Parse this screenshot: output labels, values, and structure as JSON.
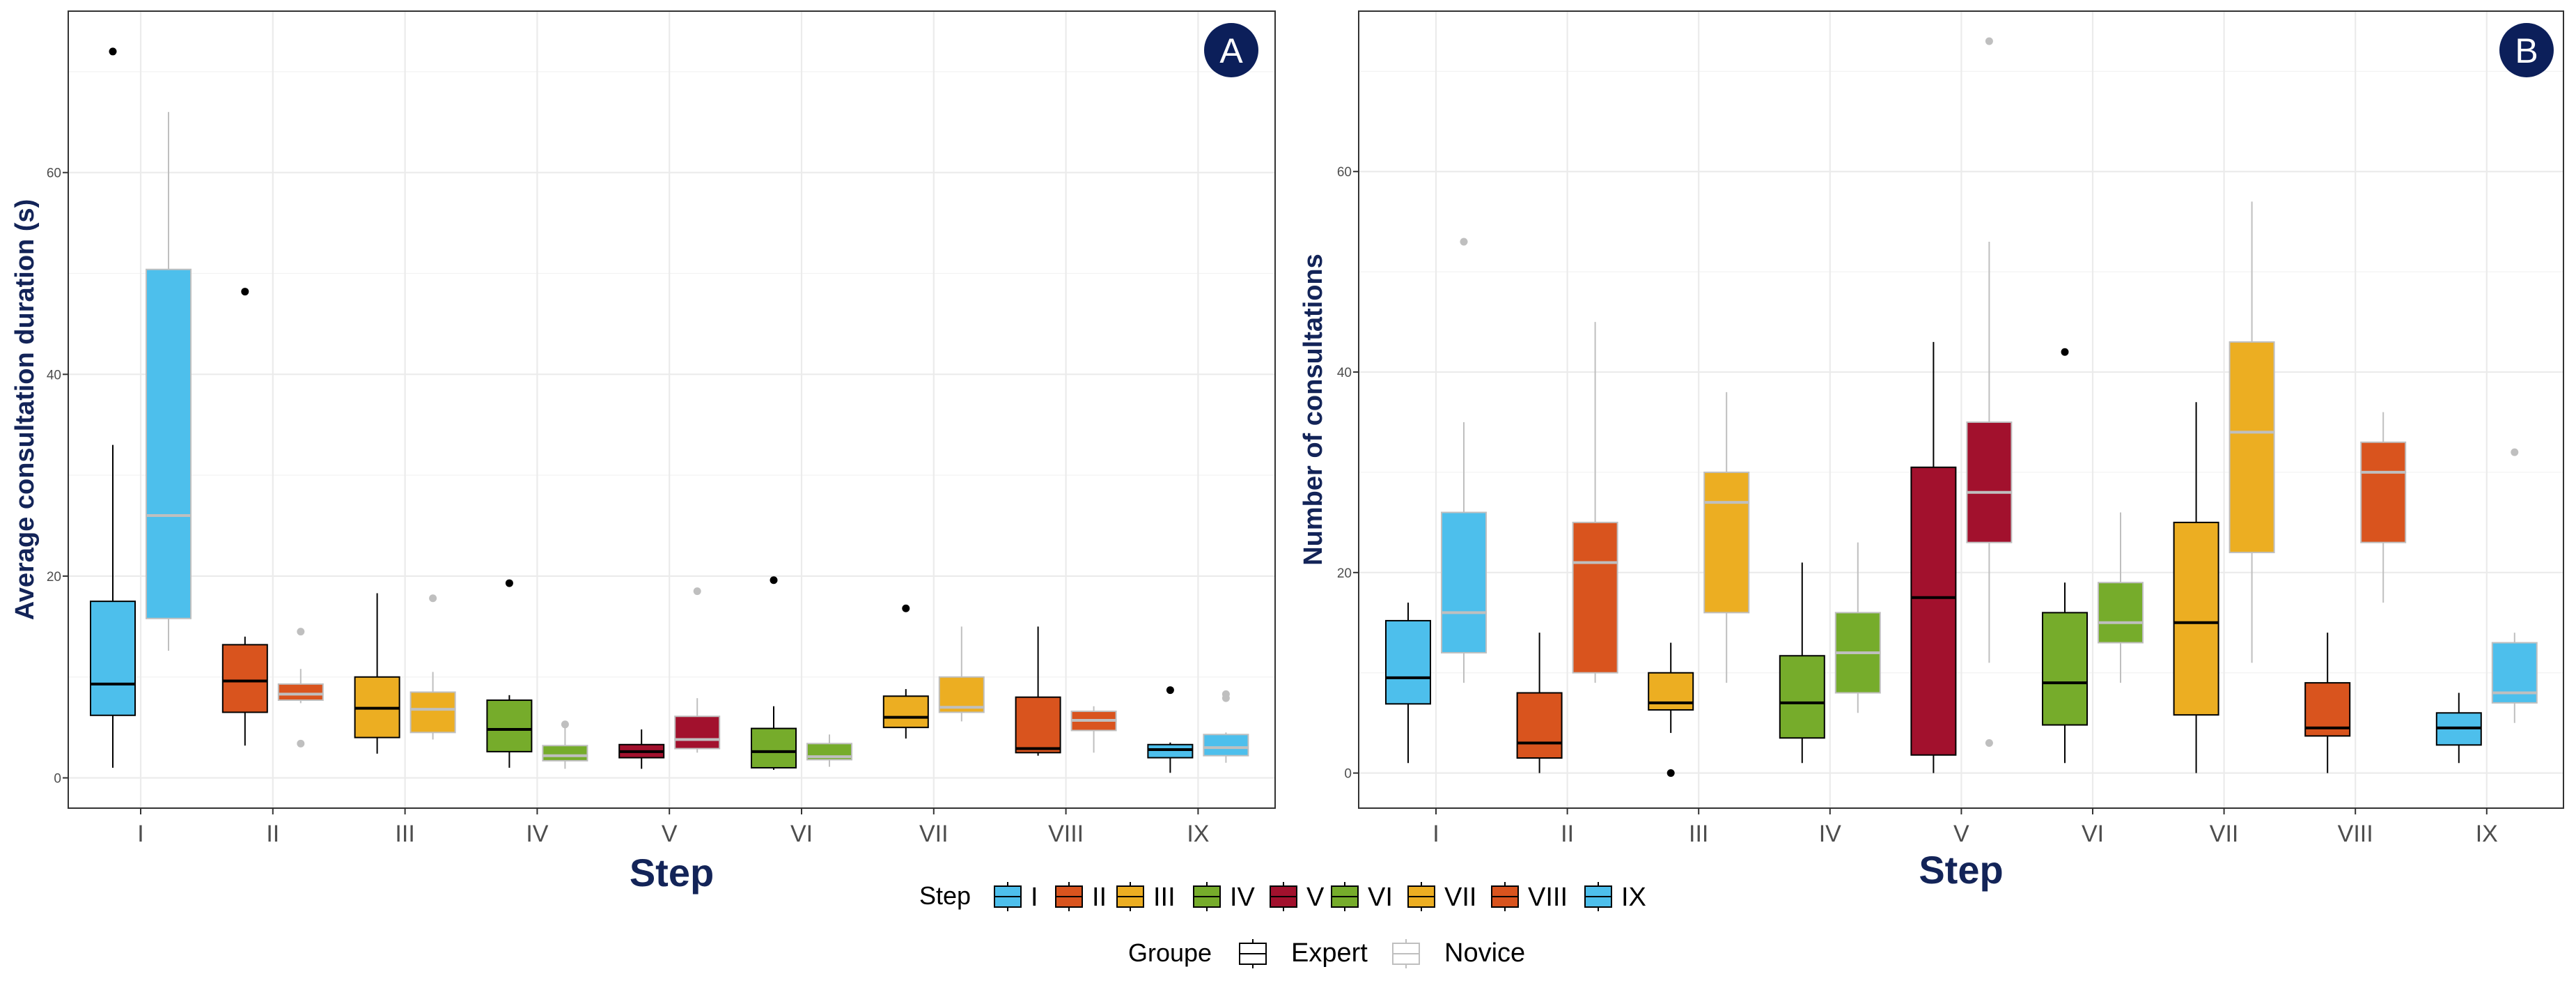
{
  "colors": {
    "I": "#4dbfec",
    "II": "#d9541e",
    "III": "#ecae22",
    "IV": "#76ac2b",
    "V": "#a2112d",
    "VI": "#76ac2b",
    "VII": "#ecae22",
    "VIII": "#d9541e",
    "IX": "#4dbfec",
    "badge": "#0c1f5a",
    "expert_line": "#000000",
    "novice_line": "#bfbfbf"
  },
  "chart_data": [
    {
      "type": "box",
      "panel": "A",
      "xlabel": "Step",
      "ylabel": "Average consultation duration (s)",
      "ylim": [
        -3,
        76
      ],
      "yticks": [
        0,
        20,
        40,
        60
      ],
      "categories": [
        "I",
        "II",
        "III",
        "IV",
        "V",
        "VI",
        "VII",
        "VIII",
        "IX"
      ],
      "series": [
        {
          "name": "Expert",
          "boxes": [
            {
              "min": 1,
              "q1": 6.2,
              "median": 9.3,
              "q3": 17.5,
              "max": 33,
              "outliers": [
                72
              ]
            },
            {
              "min": 3.2,
              "q1": 6.5,
              "median": 9.6,
              "q3": 13.2,
              "max": 14,
              "outliers": [
                48.2
              ]
            },
            {
              "min": 2.4,
              "q1": 4,
              "median": 6.9,
              "q3": 10,
              "max": 18.3,
              "outliers": []
            },
            {
              "min": 1,
              "q1": 2.6,
              "median": 4.8,
              "q3": 7.7,
              "max": 8.2,
              "outliers": [
                19.3
              ]
            },
            {
              "min": 0.9,
              "q1": 2,
              "median": 2.6,
              "q3": 3.3,
              "max": 4.8,
              "outliers": []
            },
            {
              "min": 0.8,
              "q1": 1,
              "median": 2.6,
              "q3": 4.9,
              "max": 7.1,
              "outliers": [
                19.6
              ]
            },
            {
              "min": 3.9,
              "q1": 5,
              "median": 6,
              "q3": 8.1,
              "max": 8.8,
              "outliers": [
                16.8
              ]
            },
            {
              "min": 2.2,
              "q1": 2.5,
              "median": 2.9,
              "q3": 8,
              "max": 15,
              "outliers": []
            },
            {
              "min": 0.5,
              "q1": 2,
              "median": 2.8,
              "q3": 3.3,
              "max": 3.5,
              "outliers": [
                8.7
              ]
            }
          ]
        },
        {
          "name": "Novice",
          "boxes": [
            {
              "min": 12.6,
              "q1": 15.8,
              "median": 26,
              "q3": 50.4,
              "max": 66,
              "outliers": []
            },
            {
              "min": 7.4,
              "q1": 7.7,
              "median": 8.3,
              "q3": 9.3,
              "max": 10.8,
              "outliers": [
                14.5,
                3.4
              ]
            },
            {
              "min": 3.8,
              "q1": 4.5,
              "median": 6.8,
              "q3": 8.5,
              "max": 10.5,
              "outliers": [
                17.8
              ]
            },
            {
              "min": 0.9,
              "q1": 1.7,
              "median": 2.2,
              "q3": 3.2,
              "max": 5.3,
              "outliers": [
                5.3
              ]
            },
            {
              "min": 2.5,
              "q1": 2.9,
              "median": 3.8,
              "q3": 6.1,
              "max": 7.9,
              "outliers": [
                18.5
              ]
            },
            {
              "min": 1.1,
              "q1": 1.8,
              "median": 2.1,
              "q3": 3.4,
              "max": 4.3,
              "outliers": []
            },
            {
              "min": 5.6,
              "q1": 6.5,
              "median": 7,
              "q3": 10,
              "max": 15,
              "outliers": []
            },
            {
              "min": 2.5,
              "q1": 4.7,
              "median": 5.7,
              "q3": 6.6,
              "max": 7.1,
              "outliers": []
            },
            {
              "min": 1.5,
              "q1": 2.2,
              "median": 3,
              "q3": 4.3,
              "max": 4.5,
              "outliers": [
                8.3,
                7.9
              ]
            }
          ]
        }
      ]
    },
    {
      "type": "box",
      "panel": "B",
      "xlabel": "Step",
      "ylabel": "Number of consultations",
      "ylim": [
        -3.5,
        76
      ],
      "yticks": [
        0,
        20,
        40,
        60
      ],
      "categories": [
        "I",
        "II",
        "III",
        "IV",
        "V",
        "VI",
        "VII",
        "VIII",
        "IX"
      ],
      "series": [
        {
          "name": "Expert",
          "boxes": [
            {
              "min": 1,
              "q1": 6.9,
              "median": 9.5,
              "q3": 15.2,
              "max": 17,
              "outliers": []
            },
            {
              "min": 0,
              "q1": 1.5,
              "median": 3,
              "q3": 8,
              "max": 14,
              "outliers": []
            },
            {
              "min": 4,
              "q1": 6.3,
              "median": 7,
              "q3": 10,
              "max": 13,
              "outliers": [
                0
              ]
            },
            {
              "min": 1,
              "q1": 3.5,
              "median": 7,
              "q3": 11.7,
              "max": 21,
              "outliers": []
            },
            {
              "min": 0,
              "q1": 1.8,
              "median": 17.5,
              "q3": 30.5,
              "max": 43,
              "outliers": []
            },
            {
              "min": 1,
              "q1": 4.8,
              "median": 9,
              "q3": 16,
              "max": 19,
              "outliers": [
                42
              ]
            },
            {
              "min": 0,
              "q1": 5.8,
              "median": 15,
              "q3": 25,
              "max": 37,
              "outliers": []
            },
            {
              "min": 0,
              "q1": 3.7,
              "median": 4.5,
              "q3": 9,
              "max": 14,
              "outliers": []
            },
            {
              "min": 1,
              "q1": 2.8,
              "median": 4.5,
              "q3": 6,
              "max": 8,
              "outliers": []
            }
          ]
        },
        {
          "name": "Novice",
          "boxes": [
            {
              "min": 9,
              "q1": 12,
              "median": 16,
              "q3": 26,
              "max": 35,
              "outliers": [
                53
              ]
            },
            {
              "min": 9,
              "q1": 10,
              "median": 21,
              "q3": 25,
              "max": 45,
              "outliers": []
            },
            {
              "min": 9,
              "q1": 16,
              "median": 27,
              "q3": 30,
              "max": 38,
              "outliers": []
            },
            {
              "min": 6,
              "q1": 8,
              "median": 12,
              "q3": 16,
              "max": 23,
              "outliers": []
            },
            {
              "min": 11,
              "q1": 23,
              "median": 28,
              "q3": 35,
              "max": 53,
              "outliers": [
                73,
                3
              ]
            },
            {
              "min": 9,
              "q1": 13,
              "median": 15,
              "q3": 19,
              "max": 26,
              "outliers": []
            },
            {
              "min": 11,
              "q1": 22,
              "median": 34,
              "q3": 43,
              "max": 57,
              "outliers": []
            },
            {
              "min": 17,
              "q1": 23,
              "median": 30,
              "q3": 33,
              "max": 36,
              "outliers": []
            },
            {
              "min": 5,
              "q1": 7,
              "median": 8,
              "q3": 13,
              "max": 14,
              "outliers": [
                32
              ]
            }
          ]
        }
      ]
    }
  ],
  "panels": [
    {
      "label": "A",
      "ylabel": "Average consultation duration (s)",
      "xlabel": "Step"
    },
    {
      "label": "B",
      "ylabel": "Number of consultations",
      "xlabel": "Step"
    }
  ],
  "legend": {
    "step_title": "Step",
    "steps": [
      "I",
      "II",
      "III",
      "IV",
      "V",
      "VI",
      "VII",
      "VIII",
      "IX"
    ],
    "groupe_title": "Groupe",
    "groups": [
      "Expert",
      "Novice"
    ]
  }
}
